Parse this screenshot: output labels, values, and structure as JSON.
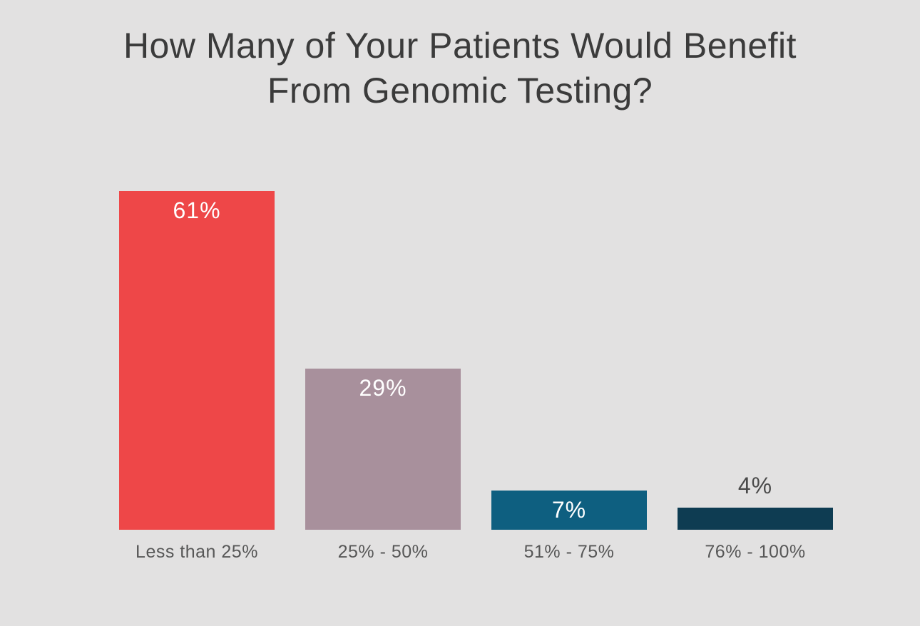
{
  "page": {
    "background": "#e2e1e1"
  },
  "chart_data": {
    "type": "bar",
    "title": "How Many of Your Patients Would Benefit From Genomic Testing?",
    "title_lines": [
      "How Many of Your Patients Would Benefit",
      "From Genomic Testing?"
    ],
    "categories": [
      "Less than 25%",
      "25% - 50%",
      "51% - 75%",
      "76% - 100%"
    ],
    "values": [
      61,
      29,
      7,
      4
    ],
    "value_labels": [
      "61%",
      "29%",
      "7%",
      "4%"
    ],
    "bar_colors": [
      "#ee4748",
      "#a8909c",
      "#0e5f80",
      "#0e3c52"
    ],
    "label_inside": [
      true,
      true,
      true,
      false
    ],
    "xlabel": "",
    "ylabel": "",
    "ylim": [
      0,
      61
    ],
    "grid": false,
    "legend": false,
    "colors": {
      "title": "#3b3b3b",
      "inside_value_label": "#ffffff",
      "outside_value_label": "#4a4a4a",
      "axis_label": "#575757"
    }
  }
}
